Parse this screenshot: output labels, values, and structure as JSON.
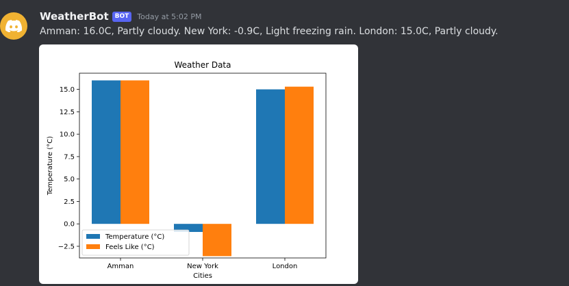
{
  "author": {
    "name": "WeatherBot",
    "badge": "BOT",
    "avatar_icon": "discord-logo-icon",
    "avatar_color": "#f0b232"
  },
  "message": {
    "timestamp": "Today at 5:02 PM",
    "text": "Amman: 16.0C, Partly cloudy. New York: -0.9C, Light freezing rain. London: 15.0C, Partly cloudy."
  },
  "chart_data": {
    "type": "bar",
    "title": "Weather Data",
    "xlabel": "Cities",
    "ylabel": "Temperature (°C)",
    "categories": [
      "Amman",
      "New York",
      "London"
    ],
    "series": [
      {
        "name": "Temperature (°C)",
        "values": [
          16.0,
          -0.9,
          15.0
        ],
        "color": "#1f77b4"
      },
      {
        "name": "Feels Like (°C)",
        "values": [
          16.0,
          -3.6,
          15.3
        ],
        "color": "#ff7f0e"
      }
    ],
    "ylim": [
      -3.8,
      16.8
    ],
    "yticks": [
      -2.5,
      0.0,
      2.5,
      5.0,
      7.5,
      10.0,
      12.5,
      15.0
    ],
    "ytick_labels": [
      "−2.5",
      "0.0",
      "2.5",
      "5.0",
      "7.5",
      "10.0",
      "12.5",
      "15.0"
    ],
    "grid": false,
    "legend_position": "lower-left"
  }
}
